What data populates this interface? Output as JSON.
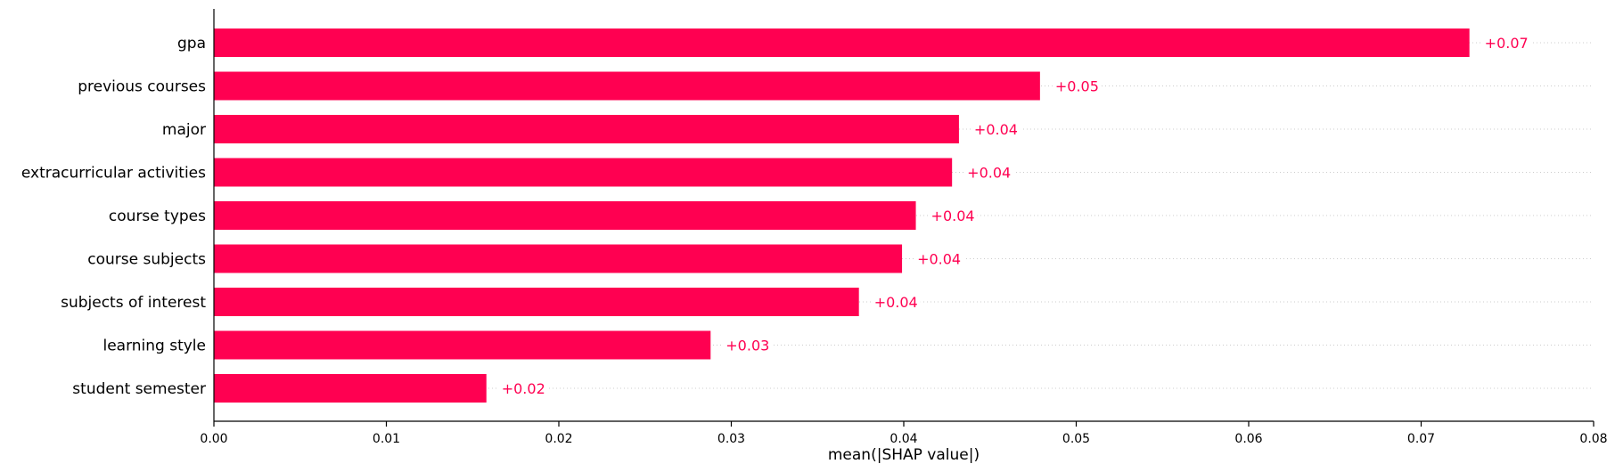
{
  "chart_data": {
    "type": "bar",
    "orientation": "horizontal",
    "categories": [
      "gpa",
      "previous courses",
      "major",
      "extracurricular activities",
      "course types",
      "course subjects",
      "subjects of interest",
      "learning style",
      "student semester"
    ],
    "values": [
      0.0728,
      0.0479,
      0.0432,
      0.0428,
      0.0407,
      0.0399,
      0.0374,
      0.0288,
      0.0158
    ],
    "value_labels": [
      "+0.07",
      "+0.05",
      "+0.04",
      "+0.04",
      "+0.04",
      "+0.04",
      "+0.04",
      "+0.03",
      "+0.02"
    ],
    "xlabel": "mean(|SHAP value|)",
    "xlim": [
      0,
      0.08
    ],
    "xticks": [
      "0.00",
      "0.01",
      "0.02",
      "0.03",
      "0.04",
      "0.05",
      "0.06",
      "0.07",
      "0.08"
    ],
    "grid": "dotted horizontal guide lines per row",
    "colors": {
      "bar": "#ff0051",
      "label": "#ff0051",
      "grid": "#cccccc",
      "axis": "#000000"
    }
  }
}
